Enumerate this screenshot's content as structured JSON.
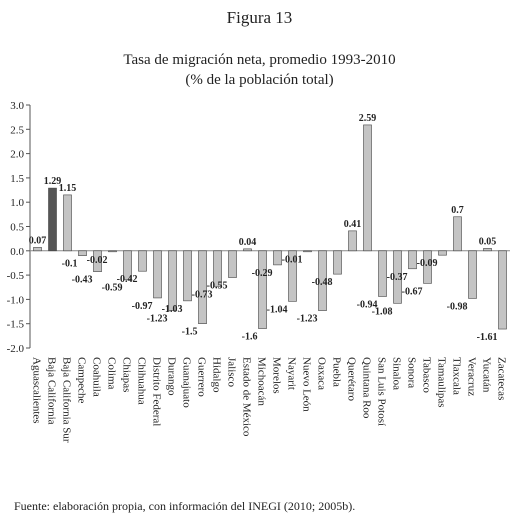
{
  "figure_label": "Figura 13",
  "source_note": "Fuente: elaboración propia, con información del INEGI (2010; 2005b).",
  "chart_data": {
    "type": "bar",
    "title": "Tasa de migración neta, promedio 1993-2010",
    "subtitle": "(% de la población total)",
    "xlabel": "",
    "ylabel": "",
    "ylim": [
      -2.0,
      3.0
    ],
    "yticks": [
      "3.0",
      "2.5",
      "2.0",
      "1.5",
      "1.0",
      "0.5",
      "0.0",
      "-0.5",
      "-1.0",
      "-1.5",
      "-2.0"
    ],
    "grid": false,
    "legend": "none",
    "categories": [
      "Aguascalientes",
      "Baja California",
      "Baja California Sur",
      "Campeche",
      "Coahuila",
      "Colima",
      "Chiapas",
      "Chihuahua",
      "Distrito Federal",
      "Durango",
      "Guanajuato",
      "Guerrero",
      "Hidalgo",
      "Jalisco",
      "Estado de México",
      "Michoacán",
      "Morelos",
      "Nayarit",
      "Nuevo León",
      "Oaxaca",
      "Puebla",
      "Querétaro",
      "Quintana Roo",
      "San Luis Potosí",
      "Sinaloa",
      "Sonora",
      "Tabasco",
      "Tamaulipas",
      "Tlaxcala",
      "Veracruz",
      "Yucatán",
      "Zacatecas"
    ],
    "values": [
      0.07,
      1.29,
      1.15,
      -0.1,
      -0.43,
      -0.02,
      -0.59,
      -0.42,
      -0.97,
      -1.23,
      -1.03,
      -1.5,
      -0.73,
      -0.55,
      0.04,
      -1.6,
      -0.29,
      -1.04,
      -0.01,
      -1.23,
      -0.48,
      0.41,
      2.59,
      -0.94,
      -1.08,
      -0.37,
      -0.67,
      -0.09,
      0.7,
      -0.98,
      0.05,
      -1.61
    ],
    "value_labels": [
      "0.07",
      "1.29",
      "1.15",
      "-0.1",
      "-0.43",
      "-0.02",
      "-0.59",
      "-0.42",
      "-0.97",
      "-1.23",
      "-1.03",
      "-1.5",
      "-0.73",
      "-0.55",
      "0.04",
      "-1.6",
      "-0.29",
      "-1.04",
      "-0.01",
      "-1.23",
      "-0.48",
      "0.41",
      "2.59",
      "-0.94",
      "-1.08",
      "-0.37",
      "-0.67",
      "-0.09",
      "0.7",
      "-0.98",
      "0.05",
      "-1.61"
    ],
    "highlight_index": 1,
    "colors": {
      "bar": "#c4c4c4",
      "bar_highlight": "#555555",
      "stroke": "#444444"
    }
  }
}
